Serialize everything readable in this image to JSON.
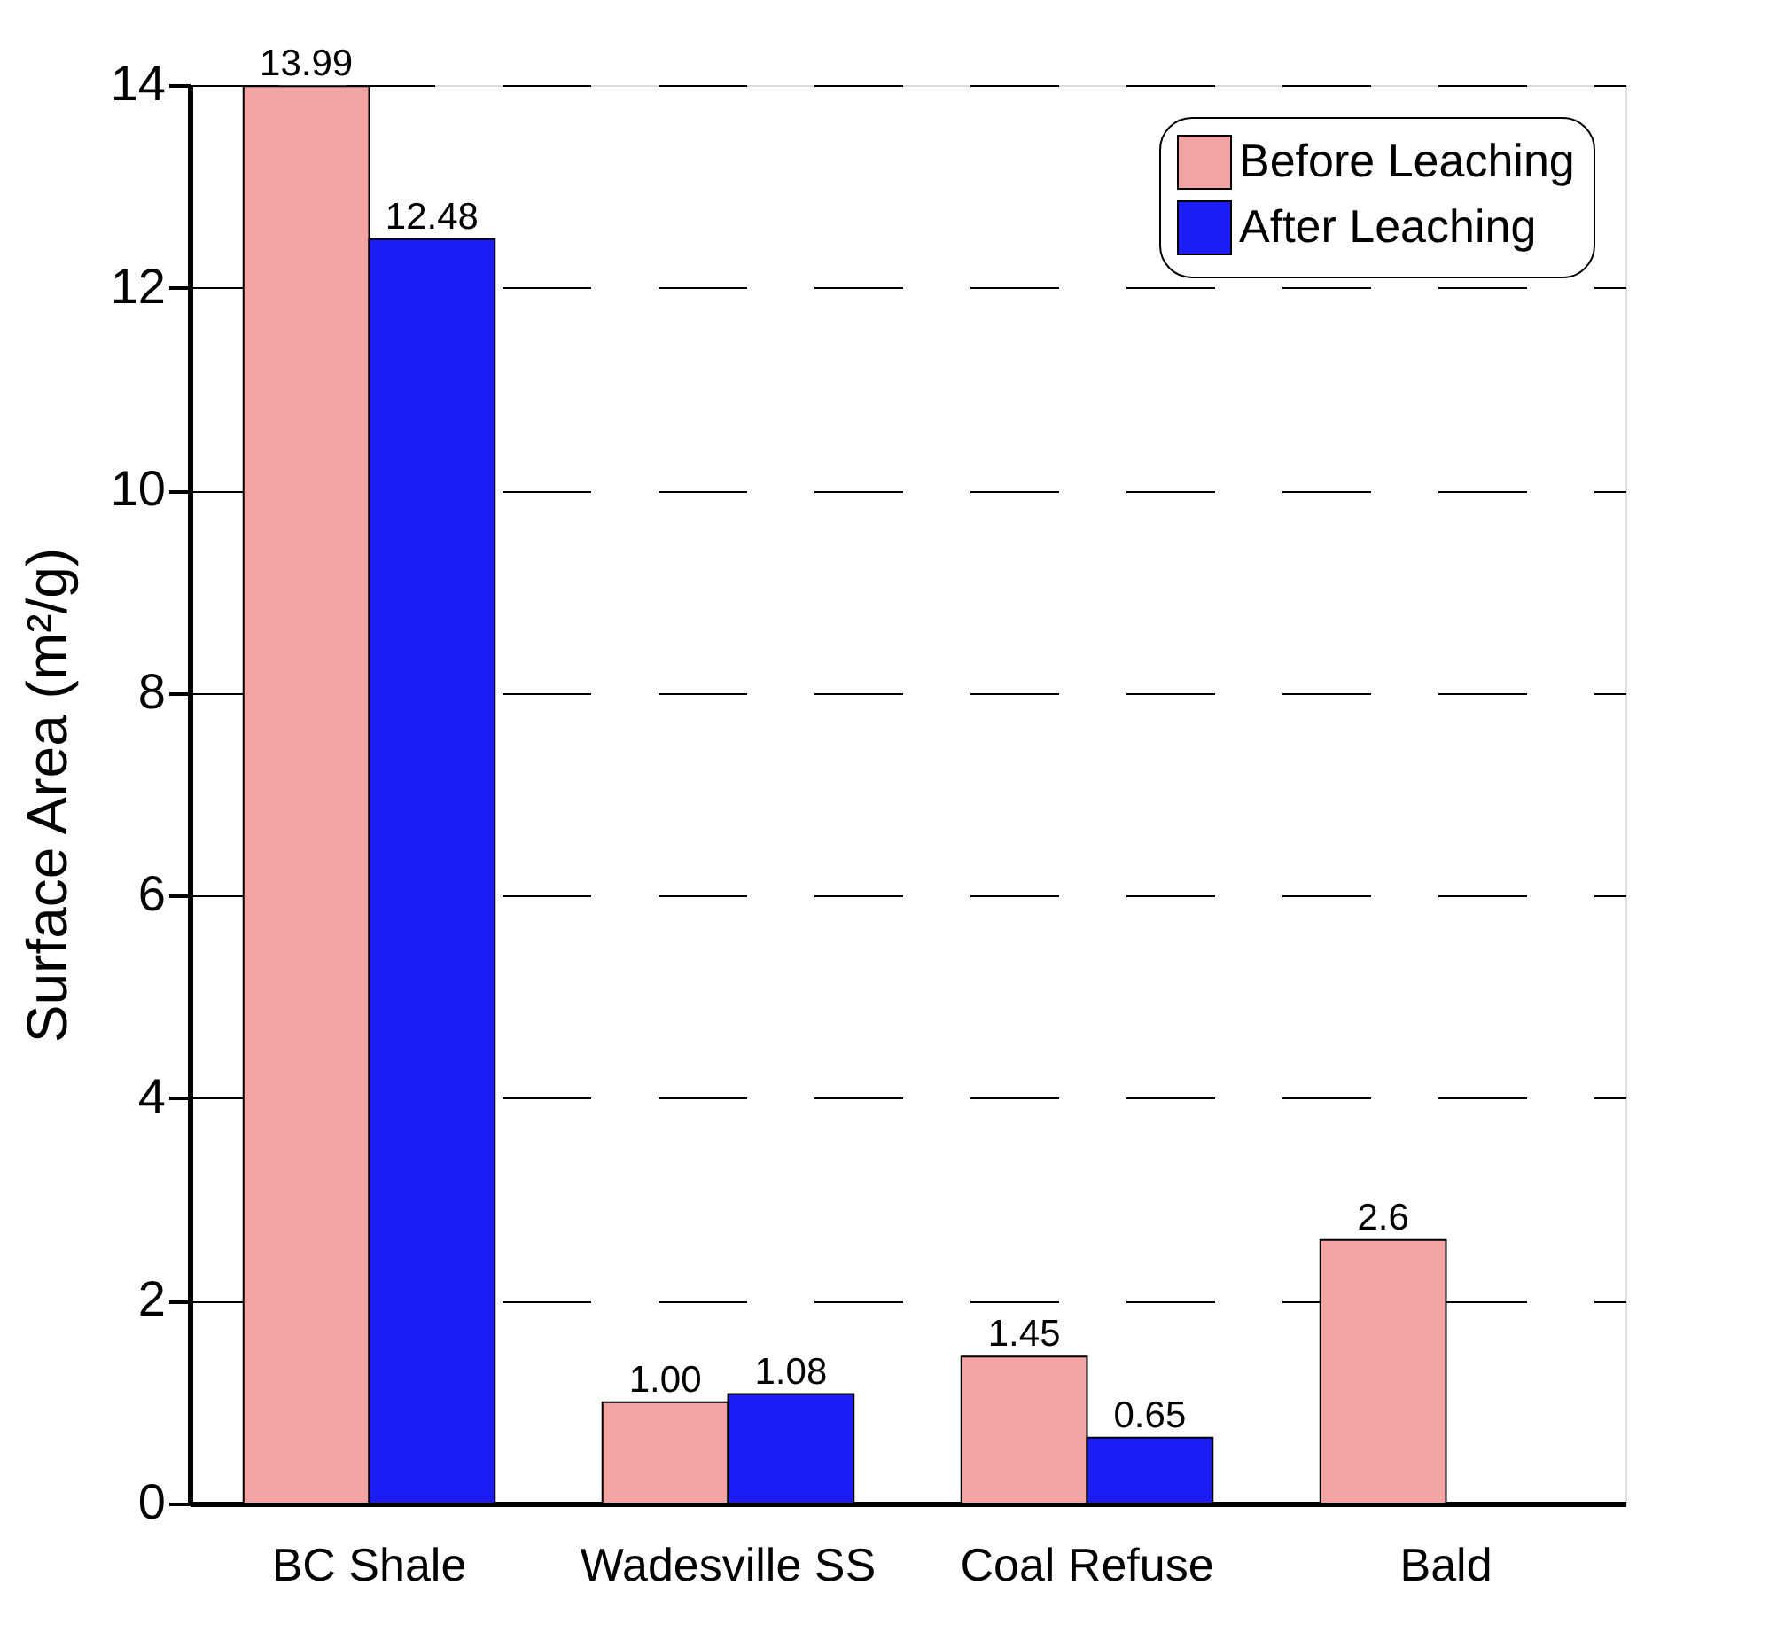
{
  "chart_data": {
    "type": "bar",
    "ylabel": "Surface Area (m²/g)",
    "categories": [
      "BC Shale",
      "Wadesville SS",
      "Coal Refuse",
      "Bald"
    ],
    "series": [
      {
        "name": "Before Leaching",
        "color": "#f4a3a3",
        "values": [
          13.99,
          1.0,
          1.45,
          2.6
        ],
        "value_labels": [
          "13.99",
          "1.00",
          "1.45",
          "2.6"
        ]
      },
      {
        "name": "After Leaching",
        "color": "#1c1cf5",
        "values": [
          12.48,
          1.08,
          0.65,
          null
        ],
        "value_labels": [
          "12.48",
          "1.08",
          "0.65",
          null
        ]
      }
    ],
    "ylim": [
      0,
      14
    ],
    "yticks": [
      0,
      2,
      4,
      6,
      8,
      10,
      12,
      14
    ],
    "grid": "y",
    "legend": "top right"
  }
}
